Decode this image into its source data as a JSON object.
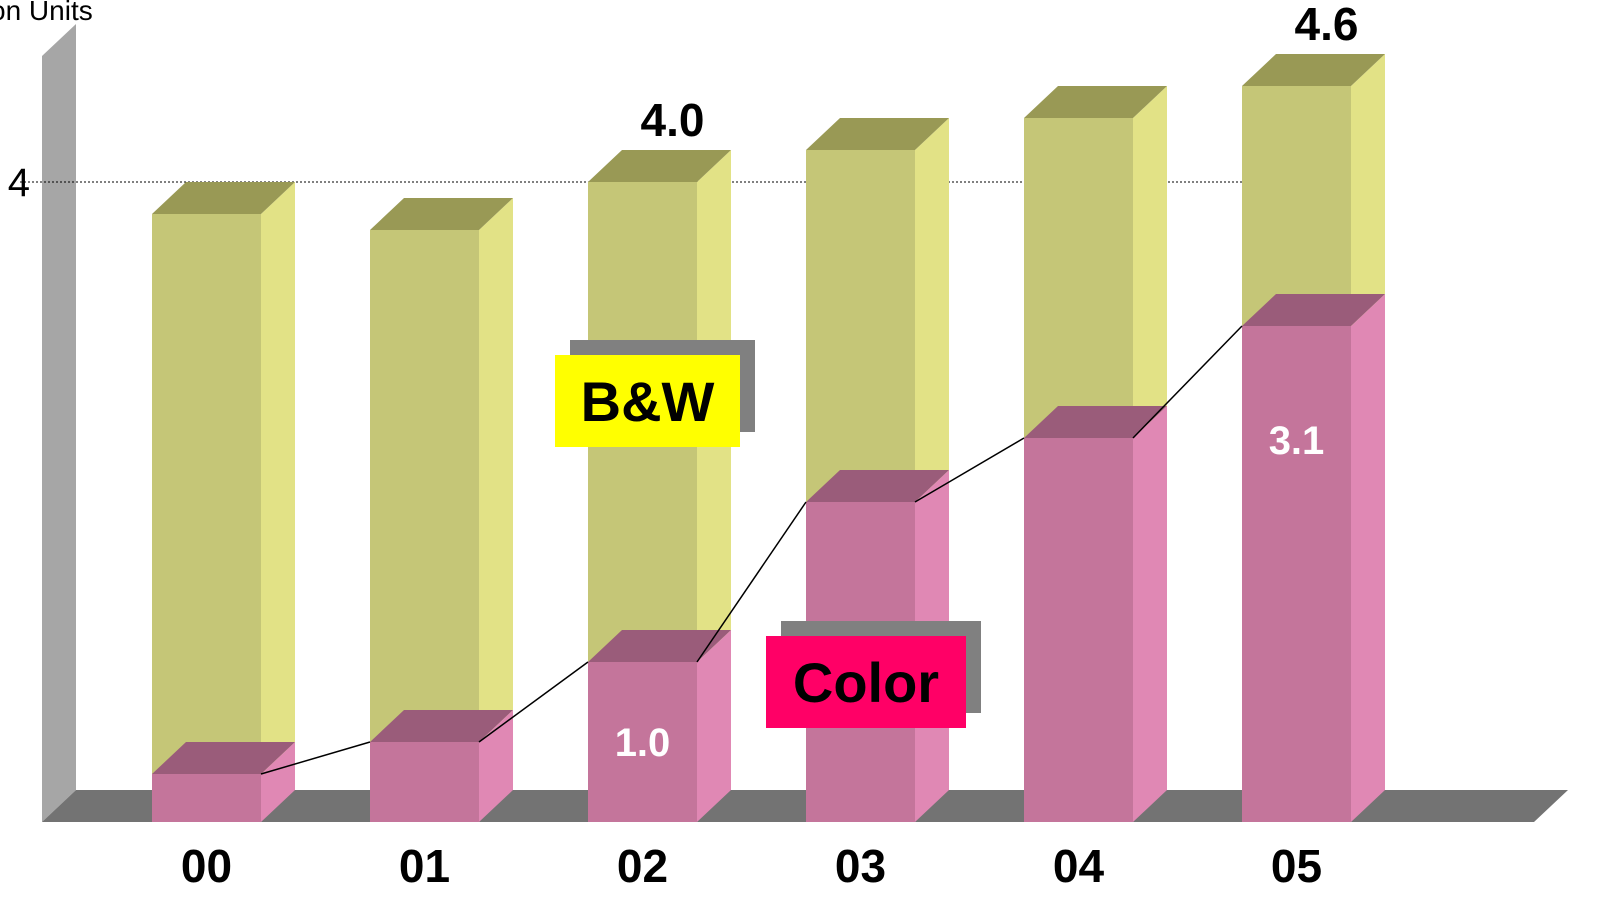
{
  "chart_data": {
    "type": "bar",
    "stacked": true,
    "three_d": true,
    "ylabel": "on Units",
    "y_ticks": [
      4
    ],
    "ylim": [
      0,
      5
    ],
    "grid": "dotted line at 4",
    "categories": [
      "00",
      "01",
      "02",
      "03",
      "04",
      "05"
    ],
    "series": [
      {
        "name": "Color",
        "values": [
          0.3,
          0.5,
          1.0,
          2.0,
          2.4,
          3.1
        ]
      },
      {
        "name": "B&W",
        "values": [
          3.5,
          3.2,
          3.0,
          2.2,
          2.0,
          1.5
        ]
      }
    ],
    "totals": [
      3.8,
      3.7,
      4.0,
      4.2,
      4.4,
      4.6
    ],
    "total_labels": [
      {
        "index": 2,
        "text": "4.0"
      },
      {
        "index": 5,
        "text": "4.6"
      }
    ],
    "color_labels": [
      {
        "index": 2,
        "text": "1.0"
      },
      {
        "index": 5,
        "text": "3.1"
      }
    ],
    "legend": [
      {
        "text": "B&W",
        "box": "#ffff00",
        "shadow": "#808080",
        "text_color": "#000000",
        "placement": "middle-left"
      },
      {
        "text": "Color",
        "box": "#ff0066",
        "shadow": "#808080",
        "text_color": "#000000",
        "placement": "bottom-center"
      }
    ],
    "colors": {
      "color_front": "#c4759b",
      "color_side": "#e088b4",
      "color_top": "#9a5c7a",
      "bw_front": "#c5c677",
      "bw_side": "#e2e286",
      "bw_top": "#999955",
      "floor": "#737373",
      "wall": "#a6a6a6",
      "trend_line": "#000000"
    }
  }
}
